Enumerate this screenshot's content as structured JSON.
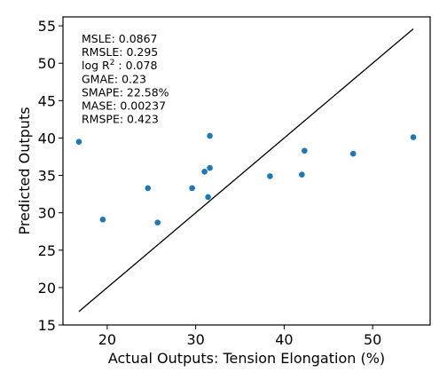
{
  "chart_data": {
    "type": "scatter",
    "title": "",
    "xlabel": "Actual Outputs: Tension Elongation (%)",
    "ylabel": "Predicted Outputs",
    "xlim": [
      15.0,
      56.5
    ],
    "ylim": [
      15,
      56.2
    ],
    "xticks": [
      20,
      30,
      40,
      50
    ],
    "yticks": [
      15,
      20,
      25,
      30,
      35,
      40,
      45,
      50,
      55
    ],
    "grid": false,
    "point_color": "#1f77b4",
    "line_color": "#000000",
    "points": [
      {
        "x": 16.8,
        "y": 39.5
      },
      {
        "x": 19.5,
        "y": 29.1
      },
      {
        "x": 24.6,
        "y": 33.3
      },
      {
        "x": 25.7,
        "y": 28.7
      },
      {
        "x": 29.6,
        "y": 33.3
      },
      {
        "x": 31.0,
        "y": 35.5
      },
      {
        "x": 31.4,
        "y": 32.1
      },
      {
        "x": 31.6,
        "y": 36.0
      },
      {
        "x": 31.6,
        "y": 40.3
      },
      {
        "x": 38.4,
        "y": 34.9
      },
      {
        "x": 42.0,
        "y": 35.1
      },
      {
        "x": 42.3,
        "y": 38.3
      },
      {
        "x": 47.8,
        "y": 37.9
      },
      {
        "x": 54.6,
        "y": 40.1
      }
    ],
    "identity_line": {
      "x": [
        16.8,
        54.6
      ],
      "y": [
        16.8,
        54.6
      ]
    },
    "metrics": [
      {
        "text": "MSLE: 0.0867"
      },
      {
        "text": "RMSLE: 0.295"
      },
      {
        "prefix": "log R",
        "sup": "2",
        "suffix": " : 0.078"
      },
      {
        "text": "GMAE: 0.23"
      },
      {
        "text": "SMAPE: 22.58%"
      },
      {
        "text": "MASE: 0.00237"
      },
      {
        "text": "RMSPE: 0.423"
      }
    ]
  }
}
